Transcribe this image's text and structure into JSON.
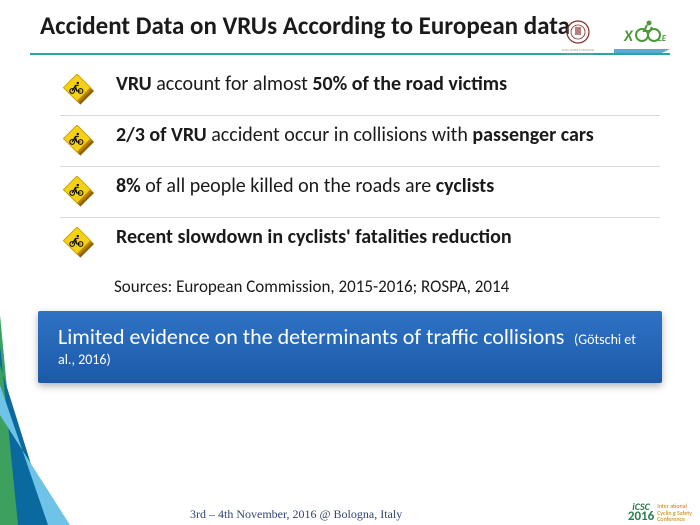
{
  "title": "Accident Data on VRUs According to European data",
  "hr_color": "#2aa3a3",
  "icon": {
    "fill": "#f4d016",
    "stroke": "#c49b00",
    "shadow1": "#b57f00",
    "shadow2": "#8f5f00",
    "symbol": "#000000"
  },
  "bullets": [
    {
      "plain1": "",
      "bold1": "VRU",
      "plain2": " account for almost ",
      "bold2": "50% of the road victims",
      "plain3": ""
    },
    {
      "plain1": "",
      "bold1": "2/3 of VRU",
      "plain2": " accident occur in collisions with ",
      "bold2": "passenger cars",
      "plain3": ""
    },
    {
      "plain1": "",
      "bold1": "8%",
      "plain2": " of all people killed on the roads are ",
      "bold2": "cyclists",
      "plain3": ""
    },
    {
      "plain1": "",
      "bold1": "Recent slowdown in cyclists' fatalities reduction",
      "plain2": "",
      "bold2": "",
      "plain3": ""
    }
  ],
  "sources": "Sources: European Commission, 2015-2016; ROSPA, 2014",
  "highlight": {
    "main": "Limited evidence on the determinants of traffic collisions",
    "cite": "(Götschi et al., 2016)"
  },
  "footer": {
    "text": "3rd – 4th November, 2016 @ Bologna, Italy",
    "icsc_top": "iCSC",
    "icsc_year": "2016",
    "conf_lines": [
      "Inter ational",
      "Cyclin g Safety",
      "Conference"
    ]
  },
  "colors": {
    "diag_green": "#3da05f",
    "diag_blue": "#0a6aa0",
    "diag_lightblue": "#6fc3e6",
    "logo_seal": "#8a2a2a",
    "xcycle_green": "#4a9a3a",
    "xcycle_blue": "#5aa9d6"
  }
}
